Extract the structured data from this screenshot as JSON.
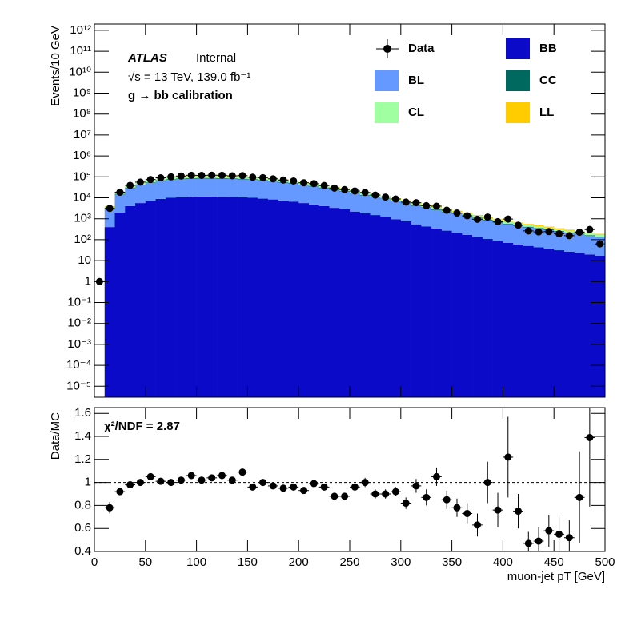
{
  "chart_data": [
    {
      "type": "histogram",
      "stacked": true,
      "yscale": "log",
      "ylabel": "Events/10 GeV",
      "bins": [
        0,
        10,
        20,
        30,
        40,
        50,
        60,
        70,
        80,
        90,
        100,
        110,
        120,
        130,
        140,
        150,
        160,
        170,
        180,
        190,
        200,
        210,
        220,
        230,
        240,
        250,
        260,
        270,
        280,
        290,
        300,
        310,
        320,
        330,
        340,
        350,
        360,
        370,
        380,
        390,
        400,
        410,
        420,
        430,
        440,
        450,
        460,
        470,
        480,
        490,
        500
      ],
      "xlim": [
        0,
        500
      ],
      "xticks": [
        0,
        50,
        100,
        150,
        200,
        250,
        300,
        350,
        400,
        450,
        500
      ],
      "ylim": [
        3e-06,
        2000000000000.0
      ],
      "yticks": [
        {
          "value": 1e-05,
          "label": "10⁻⁵"
        },
        {
          "value": 0.0001,
          "label": "10⁻⁴"
        },
        {
          "value": 0.001,
          "label": "10⁻³"
        },
        {
          "value": 0.01,
          "label": "10⁻²"
        },
        {
          "value": 0.1,
          "label": "10⁻¹"
        },
        1,
        10,
        {
          "value": 100,
          "label": "10²"
        },
        {
          "value": 1000.0,
          "label": "10³"
        },
        {
          "value": 10000.0,
          "label": "10⁴"
        },
        {
          "value": 100000.0,
          "label": "10⁵"
        },
        {
          "value": 1000000.0,
          "label": "10⁶"
        },
        {
          "value": 10000000.0,
          "label": "10⁷"
        },
        {
          "value": 100000000.0,
          "label": "10⁸"
        },
        {
          "value": 1000000000.0,
          "label": "10⁹"
        },
        {
          "value": 10000000000.0,
          "label": "10¹⁰"
        },
        {
          "value": 100000000000.0,
          "label": "10¹¹"
        },
        {
          "value": 1000000000000.0,
          "label": "10¹²"
        }
      ],
      "series": [
        {
          "name": "BB",
          "color": "#0a0ac8",
          "values": [
            0,
            400,
            2000,
            4000,
            5600,
            7100,
            8900,
            10000,
            10700,
            11200,
            11500,
            11500,
            11200,
            11000,
            10500,
            10000,
            9100,
            8300,
            7400,
            6600,
            5600,
            4800,
            4000,
            3300,
            2800,
            2200,
            1800,
            1500,
            1200,
            950,
            760,
            540,
            432,
            342,
            270,
            216,
            171,
            135,
            108,
            85.5,
            71.1,
            59.4,
            50.4,
            43.2,
            37.8,
            31.5,
            27,
            23.4,
            19.8,
            17.1
          ]
        },
        {
          "name": "BL",
          "color": "#6699ff",
          "values": [
            0,
            2480,
            12400,
            24800,
            34720,
            44020,
            55180,
            62000,
            66340,
            69440,
            71300,
            71300,
            69440,
            68200,
            65100,
            62000,
            56420,
            51460,
            45880,
            40920,
            34720,
            29760,
            24800,
            20460,
            17360,
            13640,
            11160,
            9300,
            7440,
            5890,
            4712,
            3600,
            2880,
            2280,
            1800,
            1440,
            1140,
            900,
            720,
            570,
            474,
            396,
            336,
            288,
            252,
            210,
            180,
            156,
            132,
            114
          ]
        },
        {
          "name": "CC",
          "color": "#00695f",
          "values": [
            0,
            200,
            1000,
            2000,
            2800,
            3550,
            4450,
            5000,
            5350,
            5600,
            5750,
            5750,
            5600,
            5500,
            5250,
            5000,
            4550,
            4150,
            3700,
            3300,
            2800,
            2400,
            2000,
            1650,
            1400,
            1100,
            900,
            750,
            600,
            475,
            380,
            300,
            240,
            190,
            150,
            120,
            95,
            75,
            60,
            47.5,
            39.5,
            33,
            28,
            24,
            21,
            17.5,
            15,
            13,
            11,
            9.5
          ]
        },
        {
          "name": "CL",
          "color": "#a0ffa0",
          "values": [
            0,
            720,
            3600,
            7200,
            10080,
            12780,
            16020,
            18000,
            19260,
            20160,
            20700,
            20700,
            20160,
            19800,
            18900,
            18000,
            16380,
            14940,
            13320,
            11880,
            10080,
            8640,
            7200,
            5940,
            5040,
            3960,
            3240,
            2700,
            2160,
            1710,
            1368,
            960,
            768,
            608,
            480,
            384,
            304,
            240,
            192,
            152,
            126.4,
            105.6,
            89.6,
            76.8,
            67.2,
            56,
            48,
            41.6,
            35.2,
            30.4
          ]
        },
        {
          "name": "LL",
          "color": "#ffcc00",
          "values": [
            0,
            200,
            1000,
            2000,
            2800,
            3550,
            4450,
            5000,
            5350,
            5600,
            5750,
            5750,
            5600,
            5500,
            5250,
            5000,
            4550,
            4150,
            3700,
            3300,
            2800,
            2400,
            2000,
            1650,
            1400,
            1100,
            900,
            750,
            600,
            475,
            380,
            600,
            480,
            380,
            300,
            240,
            190,
            150,
            120,
            95,
            79,
            66,
            56,
            48,
            42,
            35,
            30,
            26,
            22,
            19
          ]
        }
      ],
      "data_series": {
        "name": "Data",
        "color": "#000000",
        "values": [
          1,
          3120,
          18400,
          39200,
          56000,
          74550,
          89890,
          100000,
          109140,
          118720,
          117300,
          119600,
          118720,
          112200,
          114450,
          96000,
          91000,
          80510,
          70300,
          63360,
          52080,
          47520,
          38400,
          29040,
          24640,
          21120,
          18000,
          13500,
          10800,
          8740,
          6232,
          5820,
          4176,
          3990,
          2550,
          1872,
          1387,
          945,
          1200,
          722,
          963.8,
          495,
          263.2,
          235.2,
          243.6,
          192.5,
          156,
          226.2,
          305.8,
          63
        ]
      },
      "annotations": {
        "experiment": "ATLAS",
        "status": "Internal",
        "energy": "√s = 13 TeV, 139.0 fb⁻¹",
        "selection": "g → bb calibration"
      },
      "legend": "upper right"
    },
    {
      "type": "scatter",
      "ylabel": "Data/MC",
      "xlabel": "muon-jet pT [GeV]",
      "color": "#000000",
      "x": [
        5,
        15,
        25,
        35,
        45,
        55,
        65,
        75,
        85,
        95,
        105,
        115,
        125,
        135,
        145,
        155,
        165,
        175,
        185,
        195,
        205,
        215,
        225,
        235,
        245,
        255,
        265,
        275,
        285,
        295,
        305,
        315,
        325,
        335,
        345,
        355,
        365,
        375,
        385,
        395,
        405,
        415,
        425,
        435,
        445,
        455,
        465,
        475,
        485,
        495
      ],
      "values": [
        null,
        0.78,
        0.92,
        0.98,
        1.0,
        1.05,
        1.01,
        1.0,
        1.02,
        1.06,
        1.02,
        1.04,
        1.06,
        1.02,
        1.09,
        0.96,
        1.0,
        0.97,
        0.95,
        0.96,
        0.93,
        0.99,
        0.96,
        0.88,
        0.88,
        0.96,
        1.0,
        0.9,
        0.9,
        0.92,
        0.82,
        0.97,
        0.87,
        1.05,
        0.85,
        0.78,
        0.73,
        0.63,
        1.0,
        0.76,
        1.22,
        0.75,
        0.47,
        0.49,
        0.58,
        0.55,
        0.52,
        0.87,
        1.39,
        null
      ],
      "errors": [
        null,
        0.05,
        0.03,
        0.02,
        0.02,
        0.02,
        0.02,
        0.02,
        0.02,
        0.02,
        0.02,
        0.02,
        0.02,
        0.02,
        0.02,
        0.02,
        0.02,
        0.02,
        0.02,
        0.02,
        0.02,
        0.03,
        0.03,
        0.03,
        0.03,
        0.03,
        0.04,
        0.04,
        0.04,
        0.04,
        0.05,
        0.06,
        0.07,
        0.08,
        0.08,
        0.08,
        0.09,
        0.1,
        0.18,
        0.15,
        0.35,
        0.15,
        0.1,
        0.12,
        0.14,
        0.15,
        0.15,
        0.4,
        0.6,
        null
      ],
      "xlim": [
        0,
        500
      ],
      "xticks": [
        0,
        50,
        100,
        150,
        200,
        250,
        300,
        350,
        400,
        450,
        500
      ],
      "ylim": [
        0.4,
        1.65
      ],
      "yticks": [
        0.4,
        0.6,
        0.8,
        1,
        1.2,
        1.4,
        1.6
      ],
      "reference_line": 1,
      "annotation": "χ²/NDF = 2.87"
    }
  ]
}
